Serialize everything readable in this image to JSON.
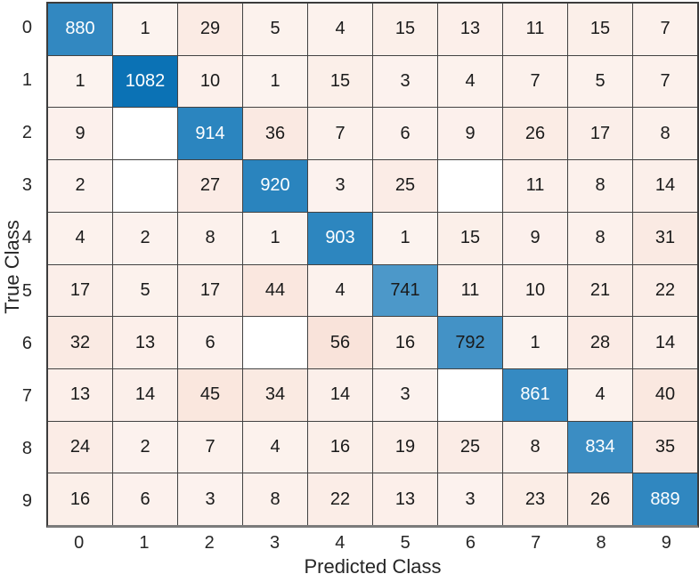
{
  "chart_data": {
    "type": "heatmap",
    "subtype": "confusion-matrix",
    "title": "",
    "xlabel": "Predicted Class",
    "ylabel": "True Class",
    "x_tick_labels": [
      "0",
      "1",
      "2",
      "3",
      "4",
      "5",
      "6",
      "7",
      "8",
      "9"
    ],
    "y_tick_labels": [
      "0",
      "1",
      "2",
      "3",
      "4",
      "5",
      "6",
      "7",
      "8",
      "9"
    ],
    "matrix": [
      [
        880,
        1,
        29,
        5,
        4,
        15,
        13,
        11,
        15,
        7
      ],
      [
        1,
        1082,
        10,
        1,
        15,
        3,
        4,
        7,
        5,
        7
      ],
      [
        9,
        null,
        914,
        36,
        7,
        6,
        9,
        26,
        17,
        8
      ],
      [
        2,
        null,
        27,
        920,
        3,
        25,
        null,
        11,
        8,
        14
      ],
      [
        4,
        2,
        8,
        1,
        903,
        1,
        15,
        9,
        8,
        31
      ],
      [
        17,
        5,
        17,
        44,
        4,
        741,
        11,
        10,
        21,
        22
      ],
      [
        32,
        13,
        6,
        null,
        56,
        16,
        792,
        1,
        28,
        14
      ],
      [
        13,
        14,
        45,
        34,
        14,
        3,
        null,
        861,
        4,
        40
      ],
      [
        24,
        2,
        7,
        4,
        16,
        19,
        25,
        8,
        834,
        35
      ],
      [
        16,
        6,
        3,
        8,
        22,
        13,
        3,
        23,
        26,
        889
      ]
    ],
    "max_value": 1082,
    "max_off_diagonal": 56,
    "colors": {
      "diagonal": "#0b72b5",
      "off_diagonal": "#d95319",
      "empty": "#ffffff",
      "grid_line": "#424242",
      "text_dark": "#1a1a1a",
      "text_light": "#ffffff",
      "tick_text": "#262626"
    },
    "white_text_threshold": 0.75,
    "legend": "none"
  }
}
